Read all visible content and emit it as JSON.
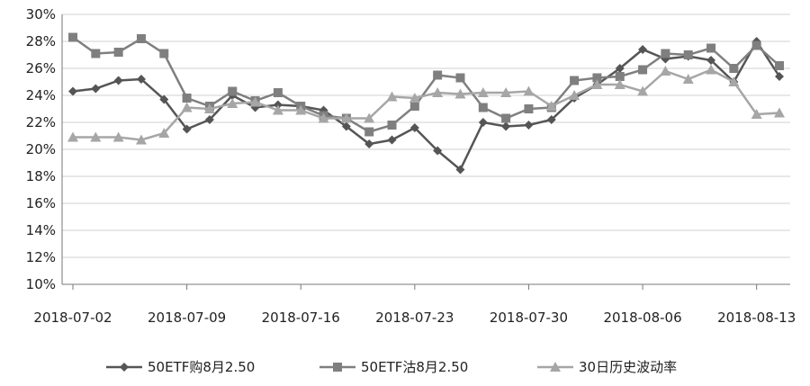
{
  "chart_data": {
    "type": "line",
    "x": [
      "2018-07-02",
      "2018-07-03",
      "2018-07-04",
      "2018-07-05",
      "2018-07-06",
      "2018-07-09",
      "2018-07-10",
      "2018-07-11",
      "2018-07-12",
      "2018-07-13",
      "2018-07-16",
      "2018-07-17",
      "2018-07-18",
      "2018-07-19",
      "2018-07-20",
      "2018-07-23",
      "2018-07-24",
      "2018-07-25",
      "2018-07-26",
      "2018-07-27",
      "2018-07-30",
      "2018-07-31",
      "2018-08-01",
      "2018-08-02",
      "2018-08-03",
      "2018-08-06",
      "2018-08-07",
      "2018-08-08",
      "2018-08-09",
      "2018-08-10",
      "2018-08-13",
      "2018-08-14"
    ],
    "xticks": [
      "2018-07-02",
      "2018-07-09",
      "2018-07-16",
      "2018-07-23",
      "2018-07-30",
      "2018-08-06",
      "2018-08-13"
    ],
    "yticks": [
      "10%",
      "12%",
      "14%",
      "16%",
      "18%",
      "20%",
      "22%",
      "24%",
      "26%",
      "28%",
      "30%"
    ],
    "ylim": [
      10,
      30
    ],
    "series": [
      {
        "name": "50ETF购8月2.50",
        "marker": "diamond",
        "color": "#555555",
        "values": [
          24.3,
          24.5,
          25.1,
          25.2,
          23.7,
          21.5,
          22.2,
          24.0,
          23.1,
          23.3,
          23.2,
          22.9,
          21.7,
          20.4,
          20.7,
          21.6,
          19.9,
          18.5,
          22.0,
          21.7,
          21.8,
          22.2,
          23.8,
          24.8,
          26.0,
          27.4,
          26.7,
          26.9,
          26.6,
          25.0,
          28.0,
          25.4
        ]
      },
      {
        "name": "50ETF沽8月2.50",
        "marker": "square",
        "color": "#7f7f7f",
        "values": [
          28.3,
          27.1,
          27.2,
          28.2,
          27.1,
          23.8,
          23.2,
          24.3,
          23.6,
          24.2,
          23.2,
          22.5,
          22.3,
          21.3,
          21.8,
          23.2,
          25.5,
          25.3,
          23.1,
          22.3,
          23.0,
          23.1,
          25.1,
          25.3,
          25.4,
          25.9,
          27.1,
          27.0,
          27.5,
          26.0,
          27.7,
          26.2
        ]
      },
      {
        "name": "30日历史波动率",
        "marker": "triangle",
        "color": "#a6a6a6",
        "values": [
          20.9,
          20.9,
          20.9,
          20.7,
          21.2,
          23.1,
          23.0,
          23.4,
          23.5,
          22.9,
          22.9,
          22.3,
          22.3,
          22.3,
          23.9,
          23.8,
          24.2,
          24.1,
          24.2,
          24.2,
          24.3,
          23.2,
          24.0,
          24.8,
          24.8,
          24.3,
          25.8,
          25.2,
          25.9,
          25.0,
          22.6,
          22.7
        ]
      }
    ],
    "grid": true,
    "legend_position": "bottom"
  }
}
